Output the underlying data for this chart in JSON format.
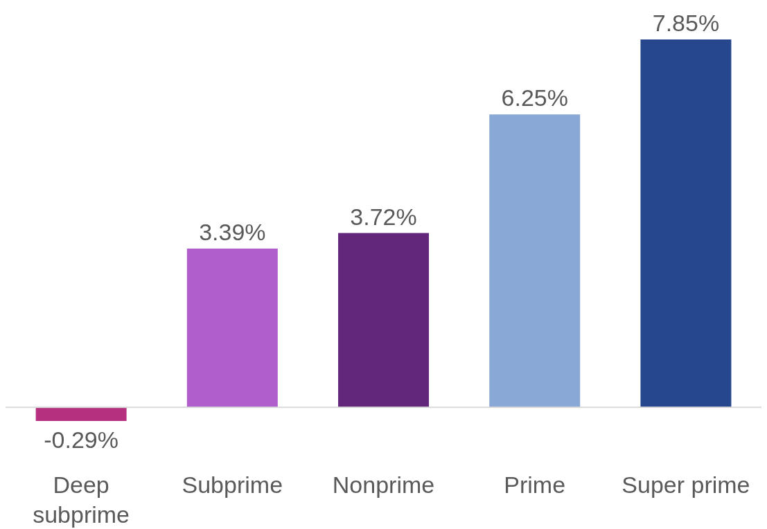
{
  "chart_data": {
    "type": "bar",
    "categories": [
      "Deep subprime",
      "Subprime",
      "Nonprime",
      "Prime",
      "Super prime"
    ],
    "values": [
      -0.29,
      3.39,
      3.72,
      6.25,
      7.85
    ],
    "colors": [
      "#b5307f",
      "#b05ecc",
      "#62267a",
      "#8aa8d6",
      "#26478d"
    ],
    "value_labels": [
      "-0.29%",
      "3.39%",
      "3.72%",
      "6.25%",
      "7.85%"
    ]
  }
}
